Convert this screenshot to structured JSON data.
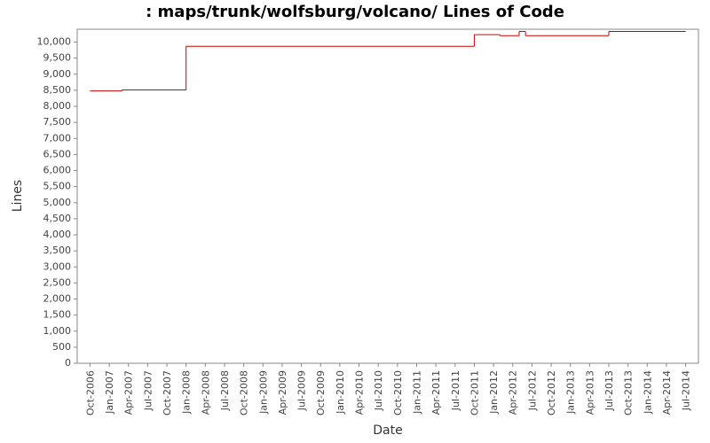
{
  "chart_data": {
    "type": "step",
    "title": ": maps/trunk/wolfsburg/volcano/ Lines of Code",
    "x_label": "Date",
    "y_label": "Lines",
    "series": [
      {
        "name": "Lines",
        "color": "#cc0000",
        "x": [
          "2006-10",
          "2007-03",
          "2008-01",
          "2011-10",
          "2012-02",
          "2012-05",
          "2012-06",
          "2013-07",
          "2014-07"
        ],
        "values": [
          8480,
          8510,
          9870,
          10230,
          10200,
          10330,
          10200,
          10330,
          10330
        ]
      }
    ],
    "xlim": [
      "2006-08",
      "2014-09"
    ],
    "xticks": [
      {
        "value": "2006-10",
        "label": "Oct-2006"
      },
      {
        "value": "2007-01",
        "label": "Jan-2007"
      },
      {
        "value": "2007-04",
        "label": "Apr-2007"
      },
      {
        "value": "2007-07",
        "label": "Jul-2007"
      },
      {
        "value": "2007-10",
        "label": "Oct-2007"
      },
      {
        "value": "2008-01",
        "label": "Jan-2008"
      },
      {
        "value": "2008-04",
        "label": "Apr-2008"
      },
      {
        "value": "2008-07",
        "label": "Jul-2008"
      },
      {
        "value": "2008-10",
        "label": "Oct-2008"
      },
      {
        "value": "2009-01",
        "label": "Jan-2009"
      },
      {
        "value": "2009-04",
        "label": "Apr-2009"
      },
      {
        "value": "2009-07",
        "label": "Jul-2009"
      },
      {
        "value": "2009-10",
        "label": "Oct-2009"
      },
      {
        "value": "2010-01",
        "label": "Jan-2010"
      },
      {
        "value": "2010-04",
        "label": "Apr-2010"
      },
      {
        "value": "2010-07",
        "label": "Jul-2010"
      },
      {
        "value": "2010-10",
        "label": "Oct-2010"
      },
      {
        "value": "2011-01",
        "label": "Jan-2011"
      },
      {
        "value": "2011-04",
        "label": "Apr-2011"
      },
      {
        "value": "2011-07",
        "label": "Jul-2011"
      },
      {
        "value": "2011-10",
        "label": "Oct-2011"
      },
      {
        "value": "2012-01",
        "label": "Jan-2012"
      },
      {
        "value": "2012-04",
        "label": "Apr-2012"
      },
      {
        "value": "2012-07",
        "label": "Jul-2012"
      },
      {
        "value": "2012-10",
        "label": "Oct-2012"
      },
      {
        "value": "2013-01",
        "label": "Jan-2013"
      },
      {
        "value": "2013-04",
        "label": "Apr-2013"
      },
      {
        "value": "2013-07",
        "label": "Jul-2013"
      },
      {
        "value": "2013-10",
        "label": "Oct-2013"
      },
      {
        "value": "2014-01",
        "label": "Jan-2014"
      },
      {
        "value": "2014-04",
        "label": "Apr-2014"
      },
      {
        "value": "2014-07",
        "label": "Jul-2014"
      }
    ],
    "ylim": [
      0,
      10400
    ],
    "yticks": [
      0,
      500,
      {
        "value": 1000,
        "label": "1,000"
      },
      {
        "value": 1500,
        "label": "1,500"
      },
      {
        "value": 2000,
        "label": "2,000"
      },
      {
        "value": 2500,
        "label": "2,500"
      },
      {
        "value": 3000,
        "label": "3,000"
      },
      {
        "value": 3500,
        "label": "3,500"
      },
      {
        "value": 4000,
        "label": "4,000"
      },
      {
        "value": 4500,
        "label": "4,500"
      },
      {
        "value": 5000,
        "label": "5,000"
      },
      {
        "value": 5500,
        "label": "5,500"
      },
      {
        "value": 6000,
        "label": "6,000"
      },
      {
        "value": 6500,
        "label": "6,500"
      },
      {
        "value": 7000,
        "label": "7,000"
      },
      {
        "value": 7500,
        "label": "7,500"
      },
      {
        "value": 8000,
        "label": "8,000"
      },
      {
        "value": 8500,
        "label": "8,500"
      },
      {
        "value": 9000,
        "label": "9,000"
      },
      {
        "value": 9500,
        "label": "9,500"
      },
      {
        "value": 10000,
        "label": "10,000"
      }
    ],
    "grid": false
  }
}
